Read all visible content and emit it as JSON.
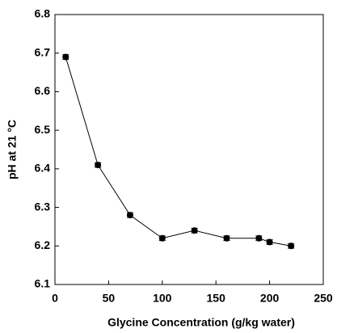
{
  "chart_data": {
    "type": "line",
    "xlabel": "Glycine Concentration (g/kg water)",
    "ylabel": "pH at 21 °C",
    "x": [
      10,
      40,
      70,
      100,
      130,
      160,
      190,
      200,
      220
    ],
    "series": [
      {
        "color": "#000000",
        "values": [
          6.69,
          6.41,
          6.28,
          6.22,
          6.24,
          6.22,
          6.22,
          6.21,
          6.2
        ],
        "errors": [
          0.006,
          0.006,
          0.006,
          0.006,
          0.006,
          0.006,
          0.006,
          0.006,
          0.006
        ]
      }
    ],
    "xlim": [
      0,
      250
    ],
    "ylim": [
      6.1,
      6.8
    ],
    "xticks": [
      0,
      50,
      100,
      150,
      200,
      250
    ],
    "yticks": [
      6.1,
      6.2,
      6.3,
      6.4,
      6.5,
      6.6,
      6.7,
      6.8
    ]
  }
}
